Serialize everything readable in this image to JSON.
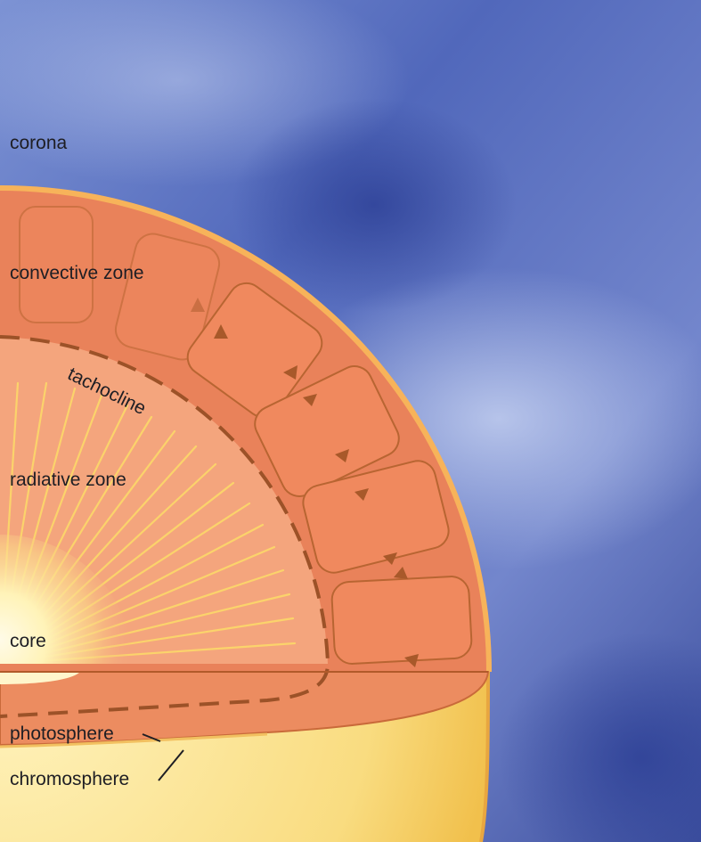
{
  "labels": {
    "corona": "corona",
    "convective_zone": "convective zone",
    "tachocline": "tachocline",
    "radiative_zone": "radiative zone",
    "core": "core",
    "photosphere": "photosphere",
    "chromosphere": "chromosphere"
  },
  "colors": {
    "space_blue": "#3f56ad",
    "corona_glow": "#c9d3f2",
    "convective_orange": "#e9825a",
    "cell_fill": "#f0895e",
    "radiative_peach": "#f4a57d",
    "core_yellow": "#fff6c8",
    "photosphere_yellow": "#f6c24f",
    "outline_brown": "#b15a2a"
  }
}
